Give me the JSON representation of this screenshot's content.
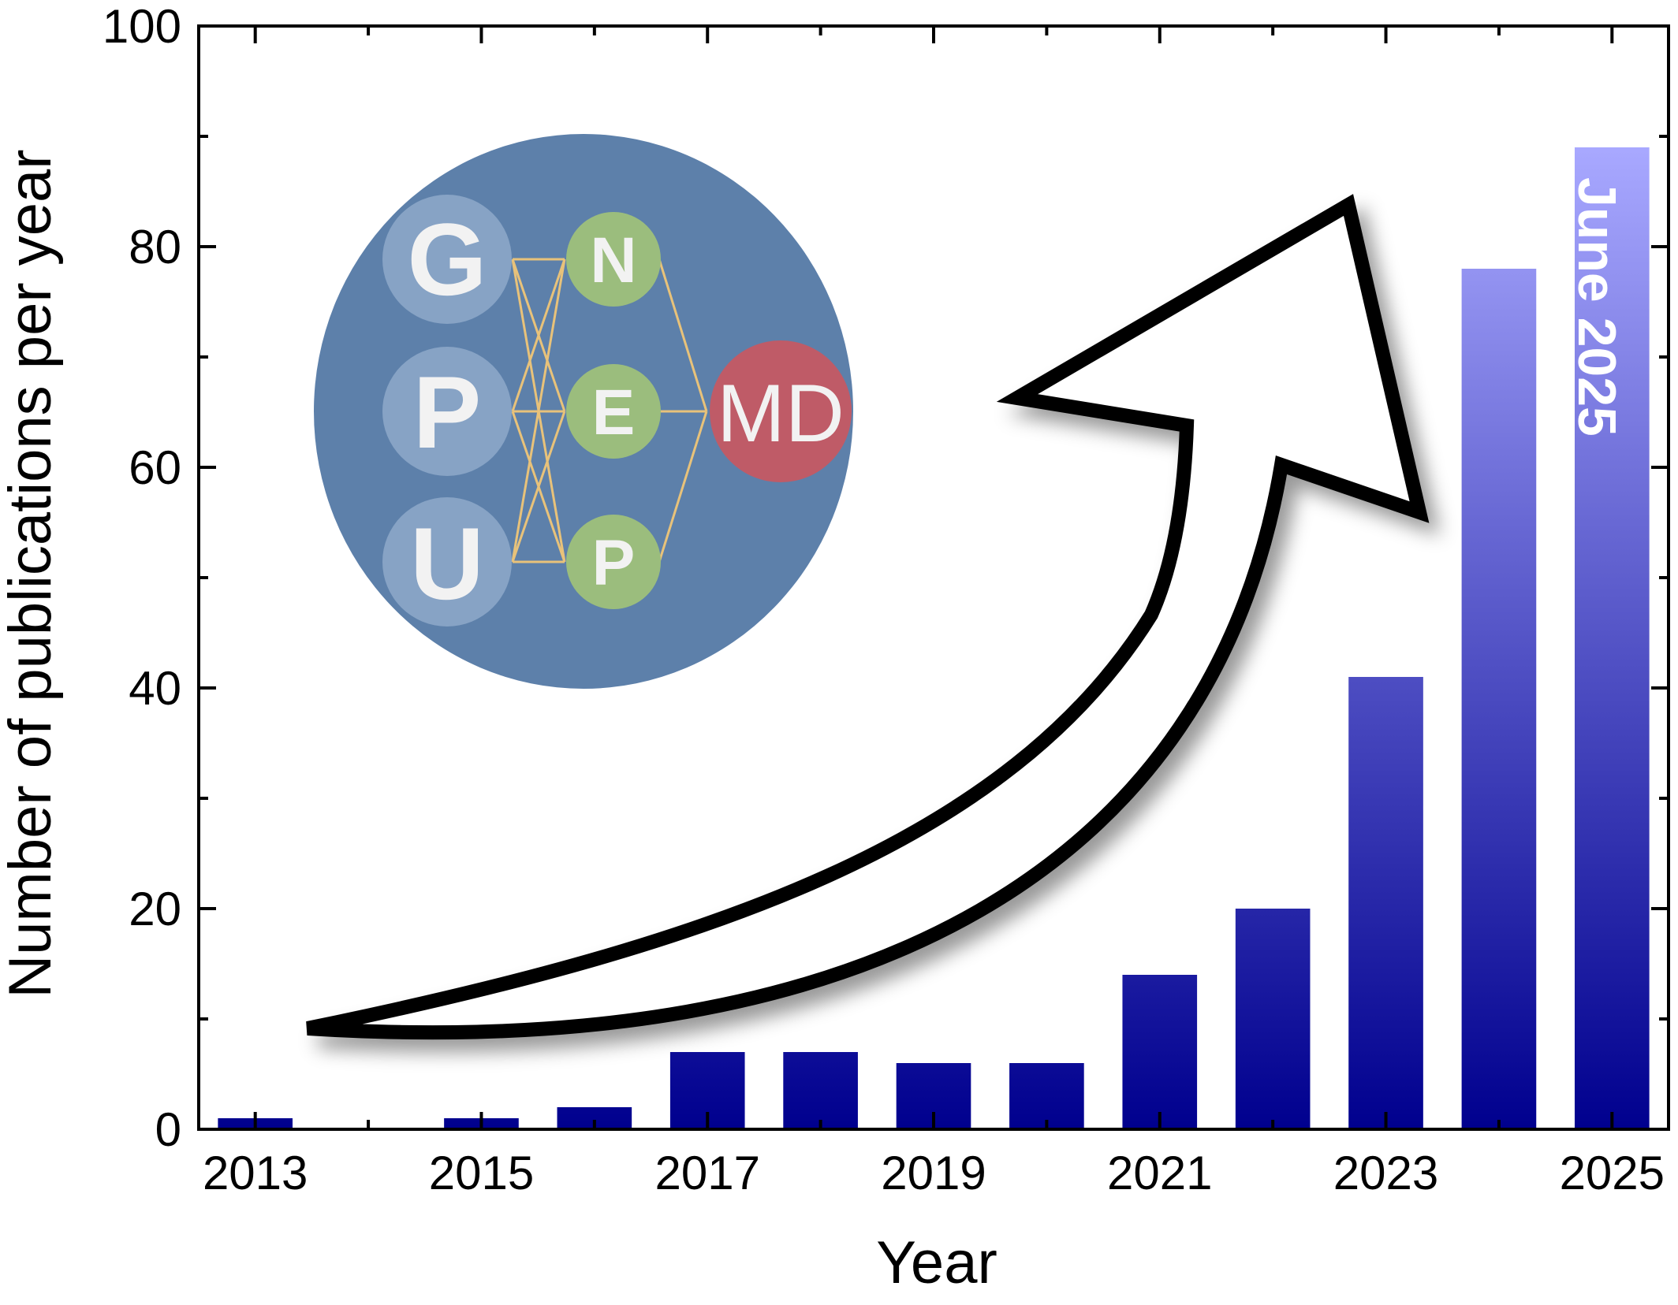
{
  "chart_data": {
    "type": "bar",
    "categories": [
      "2013",
      "2014",
      "2015",
      "2016",
      "2017",
      "2018",
      "2019",
      "2020",
      "2021",
      "2022",
      "2023",
      "2024",
      "2025"
    ],
    "values": [
      1,
      0,
      1,
      2,
      7,
      7,
      6,
      6,
      14,
      20,
      41,
      78,
      89
    ],
    "xlabel": "Year",
    "ylabel": "Number of publications per year",
    "ylim": [
      0,
      100
    ],
    "yticks": [
      "0",
      "20",
      "40",
      "60",
      "80",
      "100"
    ],
    "xticks": [
      "2013",
      "2015",
      "2017",
      "2019",
      "2021",
      "2023",
      "2025"
    ],
    "annotation": "June 2025",
    "grid": false,
    "legend": "none",
    "colors": {
      "bar_top": "#a8a8ff",
      "bar_bottom": "#00008e",
      "logo_circle": "#5d80aa",
      "input_nodes": "#87a3c5",
      "hidden_nodes": "#9bbd7d",
      "output_node": "#bf5b67",
      "connections": "#e8c27a"
    }
  },
  "logo": {
    "inputs": [
      "G",
      "P",
      "U"
    ],
    "hidden": [
      "N",
      "E",
      "P"
    ],
    "output": "MD"
  }
}
